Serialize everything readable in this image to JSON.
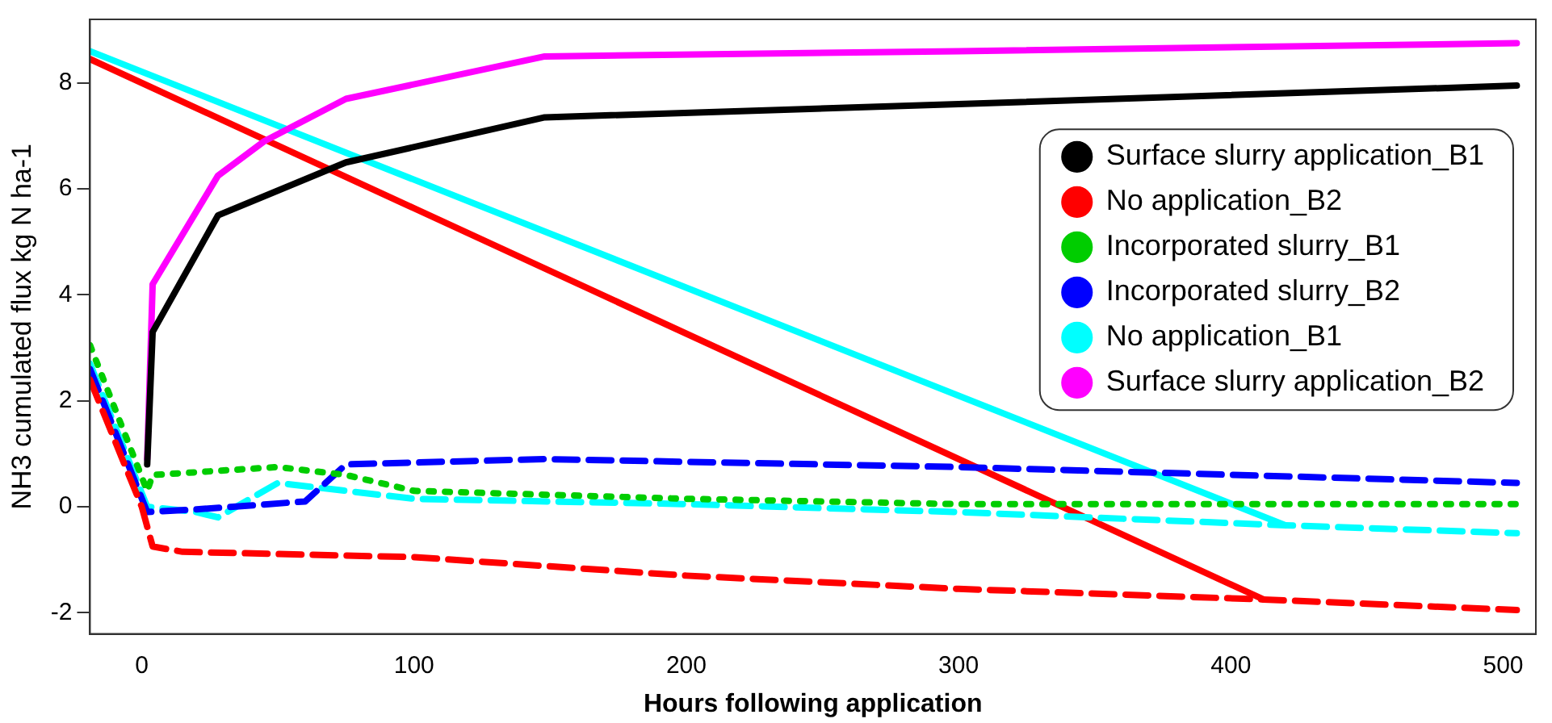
{
  "chart_data": {
    "type": "line",
    "xlabel": "Hours following application",
    "ylabel": "NH3 cumulated flux kg N ha-1",
    "xlim": [
      -19,
      512
    ],
    "xticks": [
      0,
      100,
      200,
      300,
      400,
      500
    ],
    "ylim": [
      -2.4,
      9.2
    ],
    "yticks": [
      -2,
      0,
      2,
      4,
      6,
      8
    ],
    "grid": false,
    "legend": "right",
    "marker": "none",
    "series": [
      {
        "name": "Surface slurry application_B1",
        "color": "#000000",
        "line_style": "solid",
        "x": [
          2,
          4,
          28,
          75,
          148,
          300,
          505
        ],
        "values": [
          0.8,
          3.3,
          5.5,
          6.5,
          7.35,
          7.6,
          7.95
        ]
      },
      {
        "name": "No application_B2",
        "color": "#ff0000",
        "line_style": "dashed",
        "x": [
          -19,
          0,
          4,
          15,
          100,
          200,
          300,
          412,
          505
        ],
        "values": [
          2.4,
          0,
          -0.75,
          -0.85,
          -0.95,
          -1.3,
          -1.55,
          -1.75,
          -1.95
        ]
      },
      {
        "name": "Incorporated slurry_B1",
        "color": "#00cd00",
        "line_style": "dotted",
        "x": [
          -19,
          2,
          4,
          50,
          75,
          100,
          200,
          300,
          505
        ],
        "values": [
          3.05,
          0.3,
          0.6,
          0.75,
          0.6,
          0.3,
          0.15,
          0.05,
          0.05
        ]
      },
      {
        "name": "Incorporated slurry_B2",
        "color": "#0000ff",
        "line_style": "dashed",
        "x": [
          -19,
          2,
          20,
          60,
          75,
          148,
          300,
          505
        ],
        "values": [
          2.6,
          -0.1,
          -0.05,
          0.1,
          0.8,
          0.9,
          0.75,
          0.45
        ]
      },
      {
        "name": "No application_B1",
        "color": "#00ffff",
        "line_style": "dashed",
        "x": [
          -19,
          2,
          20,
          28,
          50,
          100,
          200,
          300,
          420,
          505
        ],
        "values": [
          2.7,
          0,
          -0.1,
          -0.2,
          0.45,
          0.15,
          0.05,
          -0.1,
          -0.35,
          -0.5
        ]
      },
      {
        "name": "Surface slurry application_B2",
        "color": "#ff00ff",
        "line_style": "solid",
        "x": [
          2,
          4,
          28,
          45,
          75,
          148,
          300,
          505
        ],
        "values": [
          0.9,
          4.2,
          6.25,
          6.9,
          7.7,
          8.5,
          8.6,
          8.75
        ]
      },
      {
        "color": "#ff0000",
        "line_style": "solid",
        "x": [
          -19,
          412
        ],
        "values": [
          8.45,
          -1.75
        ]
      },
      {
        "color": "#00ffff",
        "line_style": "solid",
        "x": [
          -19,
          420
        ],
        "values": [
          8.6,
          -0.35
        ]
      }
    ]
  }
}
